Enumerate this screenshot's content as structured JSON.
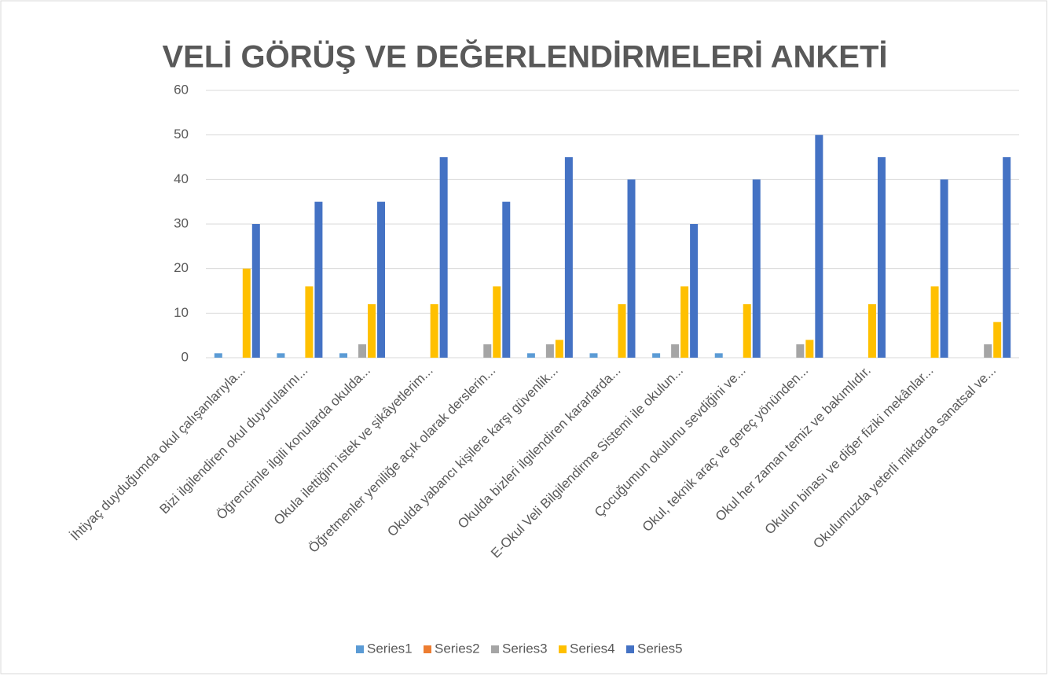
{
  "chart_data": {
    "type": "bar",
    "title": "VELİ GÖRÜŞ VE DEĞERLENDİRMELERİ ANKETİ",
    "categories": [
      "İhtiyaç duyduğumda okul çalışanlarıyla...",
      "Bizi ilgilendiren okul duyurularını...",
      "Öğrencimle ilgili konularda okulda...",
      "Okula ilettiğim istek ve şikâyetlerim...",
      "Öğretmenler yeniliğe açık olarak derslerin...",
      "Okulda yabancı kişilere karşı güvenlik...",
      "Okulda bizleri ilgilendiren kararlarda...",
      "E-Okul Veli Bilgilendirme Sistemi ile okulun...",
      "Çocuğumun okulunu sevdiğini ve...",
      "Okul, teknik araç ve gereç yönünden...",
      "Okul her zaman temiz ve bakımlıdır.",
      "Okulun binası ve diğer fiziki mekânlar...",
      "Okulumuzda yeterli miktarda sanatsal ve..."
    ],
    "series": [
      {
        "name": "Series1",
        "color": "#5b9bd5",
        "values": [
          1,
          1,
          1,
          0,
          0,
          1,
          1,
          1,
          1,
          0,
          0,
          0,
          0
        ]
      },
      {
        "name": "Series2",
        "color": "#ed7d31",
        "values": [
          0,
          0,
          0,
          0,
          0,
          0,
          0,
          0,
          0,
          0,
          0,
          0,
          0
        ]
      },
      {
        "name": "Series3",
        "color": "#a5a5a5",
        "values": [
          0,
          0,
          3,
          0,
          3,
          3,
          0,
          3,
          0,
          3,
          0,
          0,
          3
        ]
      },
      {
        "name": "Series4",
        "color": "#ffc000",
        "values": [
          20,
          16,
          12,
          12,
          16,
          4,
          12,
          16,
          12,
          4,
          12,
          16,
          8
        ]
      },
      {
        "name": "Series5",
        "color": "#4472c4",
        "values": [
          30,
          35,
          35,
          45,
          35,
          45,
          40,
          30,
          40,
          50,
          45,
          40,
          45
        ]
      }
    ],
    "ylim": [
      0,
      60
    ],
    "yticks": [
      0,
      10,
      20,
      30,
      40,
      50,
      60
    ],
    "grid": true,
    "legend": "bottom"
  }
}
